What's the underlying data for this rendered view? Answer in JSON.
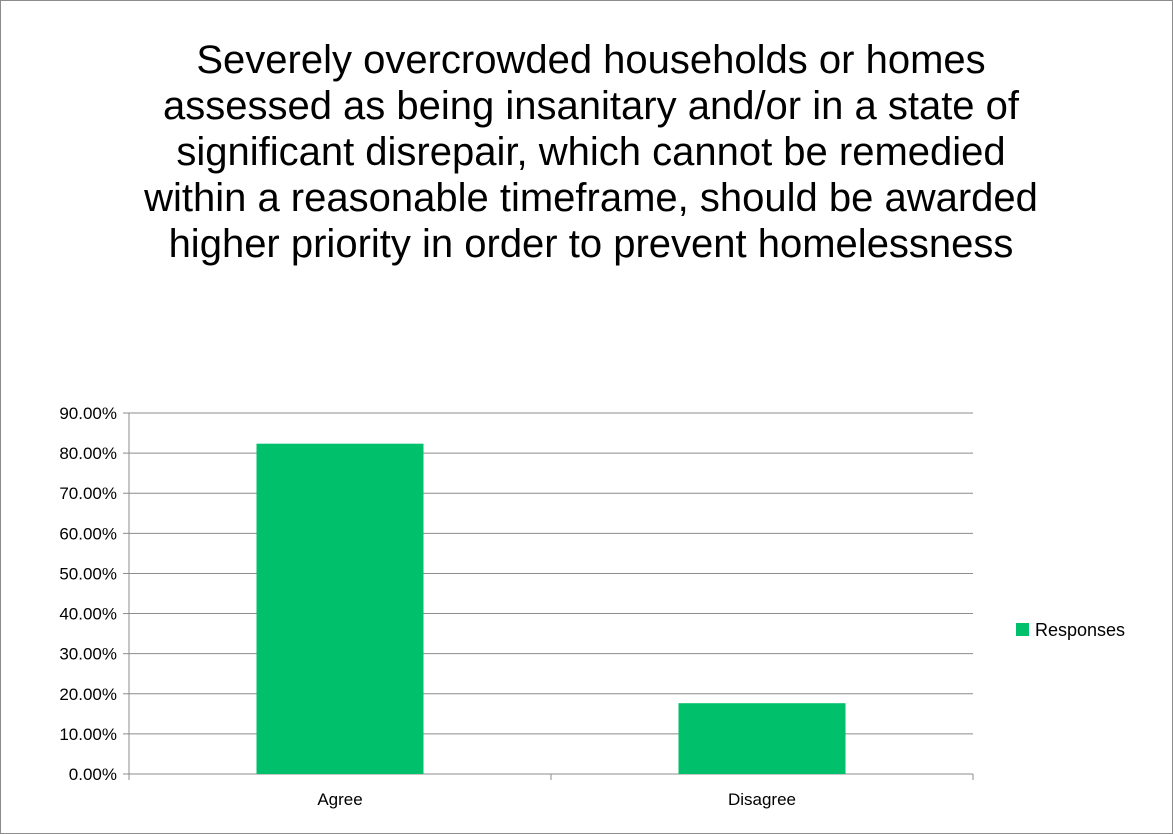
{
  "chart_data": {
    "type": "bar",
    "title": "Severely overcrowded households or homes assessed as being insanitary and/or in a state of significant disrepair, which cannot be remedied within a reasonable timeframe, should be awarded higher priority in order to prevent homelessness",
    "categories": [
      "Agree",
      "Disagree"
    ],
    "series": [
      {
        "name": "Responses",
        "values": [
          0.8235,
          0.1765
        ],
        "color": "#00c06b"
      }
    ],
    "ylim": [
      0,
      0.9
    ],
    "yticks": [
      "0.00%",
      "10.00%",
      "20.00%",
      "30.00%",
      "40.00%",
      "50.00%",
      "60.00%",
      "70.00%",
      "80.00%",
      "90.00%"
    ],
    "grid": true,
    "legend_position": "right"
  }
}
